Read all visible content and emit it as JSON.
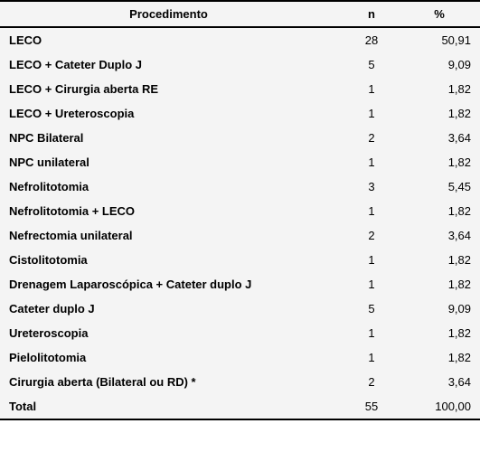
{
  "table": {
    "background_color": "#f4f4f4",
    "border_color": "#000000",
    "font_family": "Arial",
    "header_fontsize": 13,
    "row_fontsize": 13,
    "columns": [
      {
        "key": "proc",
        "label": "Procedimento",
        "align": "left",
        "bold": true
      },
      {
        "key": "n",
        "label": "n",
        "align": "center",
        "bold": false
      },
      {
        "key": "pct",
        "label": "%",
        "align": "right",
        "bold": false
      }
    ],
    "rows": [
      {
        "proc": "LECO",
        "n": "28",
        "pct": "50,91"
      },
      {
        "proc": "LECO + Cateter Duplo J",
        "n": "5",
        "pct": "9,09"
      },
      {
        "proc": "LECO + Cirurgia aberta RE",
        "n": "1",
        "pct": "1,82"
      },
      {
        "proc": "LECO + Ureteroscopia",
        "n": "1",
        "pct": "1,82"
      },
      {
        "proc": "NPC Bilateral",
        "n": "2",
        "pct": "3,64"
      },
      {
        "proc": "NPC unilateral",
        "n": "1",
        "pct": "1,82"
      },
      {
        "proc": "Nefrolitotomia",
        "n": "3",
        "pct": "5,45"
      },
      {
        "proc": "Nefrolitotomia + LECO",
        "n": "1",
        "pct": "1,82"
      },
      {
        "proc": "Nefrectomia unilateral",
        "n": "2",
        "pct": "3,64"
      },
      {
        "proc": "Cistolitotomia",
        "n": "1",
        "pct": "1,82"
      },
      {
        "proc": "Drenagem Laparoscópica + Cateter duplo J",
        "n": "1",
        "pct": "1,82"
      },
      {
        "proc": "Cateter duplo J",
        "n": "5",
        "pct": "9,09"
      },
      {
        "proc": "Ureteroscopia",
        "n": "1",
        "pct": "1,82"
      },
      {
        "proc": "Pielolitotomia",
        "n": "1",
        "pct": "1,82"
      },
      {
        "proc": "Cirurgia aberta (Bilateral ou RD) *",
        "n": "2",
        "pct": "3,64"
      },
      {
        "proc": "Total",
        "n": "55",
        "pct": "100,00"
      }
    ]
  }
}
